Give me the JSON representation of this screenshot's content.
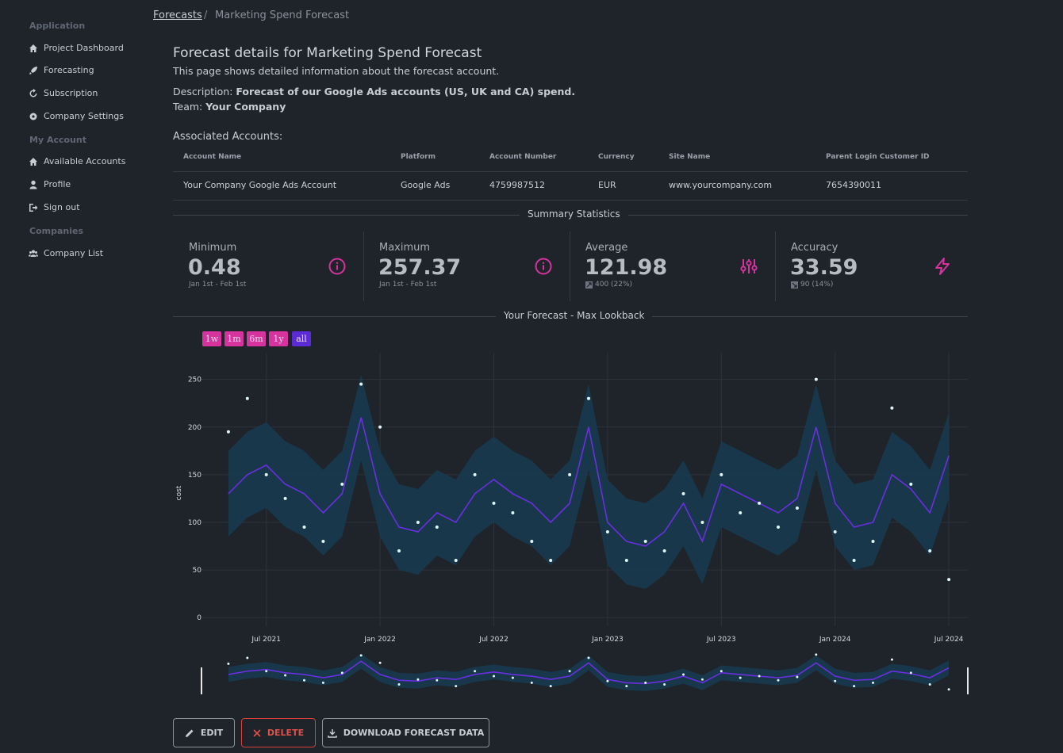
{
  "sidebar": {
    "sections": [
      {
        "title": "Application",
        "items": [
          "Project Dashboard",
          "Forecasting",
          "Subscription",
          "Company Settings"
        ]
      },
      {
        "title": "My Account",
        "items": [
          "Available Accounts",
          "Profile",
          "Sign out"
        ]
      },
      {
        "title": "Companies",
        "items": [
          "Company List"
        ]
      }
    ]
  },
  "breadcrumb": [
    "Forecasts",
    "Marketing Spend Forecast"
  ],
  "header": {
    "title": "Forecast details for Marketing Spend Forecast",
    "subtitle": "This page shows detailed information about the forecast account."
  },
  "description": {
    "label": "Description:",
    "text": "Forecast of our Google Ads accounts (US, UK and CA) spend."
  },
  "team": {
    "label": "Team:",
    "text": "Your Company"
  },
  "accounts": {
    "title": "Associated Accounts:",
    "columns": [
      "Account Name",
      "Platform",
      "Account Number",
      "Currency",
      "Site Name",
      "Parent Login Customer ID"
    ],
    "rows": [
      [
        "Your Company Google Ads Account",
        "Google Ads",
        "4759987512",
        "EUR",
        "www.yourcompany.com",
        "7654390011"
      ]
    ]
  },
  "summary": {
    "title": "Summary Statistics",
    "cards": [
      {
        "label": "Minimum",
        "value": 0.48,
        "note": "Jan 1st - Feb 1st"
      },
      {
        "label": "Maximum",
        "value": 257.37,
        "note": "Jan 1st - Feb 1st"
      },
      {
        "label": "Average",
        "value": 121.98,
        "note": "400 (22%)"
      },
      {
        "label": "Accuracy",
        "value": 33.59,
        "note": "90 (14%)"
      }
    ]
  },
  "chart_title": "Your Forecast - Max Lookback",
  "range_buttons": [
    "1w",
    "1m",
    "6m",
    "1y",
    "all"
  ],
  "chart_data": {
    "type": "line",
    "y_label": "cost",
    "x": [
      "2021-05",
      "2021-06",
      "2021-07",
      "2021-08",
      "2021-09",
      "2021-10",
      "2021-11",
      "2021-12",
      "2022-01",
      "2022-02",
      "2022-03",
      "2022-04",
      "2022-05",
      "2022-06",
      "2022-07",
      "2022-08",
      "2022-09",
      "2022-10",
      "2022-11",
      "2022-12",
      "2023-01",
      "2023-02",
      "2023-03",
      "2023-04",
      "2023-05",
      "2023-06",
      "2023-07",
      "2023-08",
      "2023-09",
      "2023-10",
      "2023-11",
      "2023-12",
      "2024-01",
      "2024-02",
      "2024-03",
      "2024-04",
      "2024-05",
      "2024-06",
      "2024-07"
    ],
    "series": [
      {
        "color": "#6a2fe0",
        "values": [
          130,
          150,
          160,
          140,
          130,
          110,
          130,
          210,
          130,
          95,
          90,
          110,
          100,
          130,
          145,
          130,
          120,
          100,
          120,
          200,
          100,
          80,
          75,
          90,
          120,
          80,
          140,
          130,
          120,
          110,
          125,
          200,
          120,
          95,
          100,
          150,
          135,
          110,
          170
        ]
      }
    ],
    "band": {
      "color": "#173a4f",
      "upper": [
        175,
        195,
        205,
        185,
        175,
        155,
        175,
        255,
        175,
        140,
        135,
        155,
        145,
        175,
        190,
        175,
        165,
        145,
        165,
        245,
        145,
        125,
        120,
        135,
        165,
        125,
        185,
        175,
        165,
        155,
        170,
        245,
        165,
        140,
        145,
        195,
        180,
        155,
        215
      ],
      "lower": [
        85,
        105,
        115,
        95,
        85,
        65,
        85,
        165,
        85,
        50,
        45,
        65,
        55,
        85,
        100,
        85,
        75,
        55,
        75,
        155,
        55,
        35,
        30,
        45,
        75,
        35,
        95,
        85,
        75,
        65,
        80,
        155,
        75,
        50,
        55,
        105,
        90,
        65,
        125
      ]
    },
    "actual": {
      "color": "#dff6f7",
      "values": [
        195,
        230,
        150,
        125,
        95,
        80,
        140,
        245,
        200,
        70,
        100,
        95,
        60,
        150,
        120,
        110,
        80,
        60,
        150,
        230,
        90,
        60,
        80,
        70,
        130,
        100,
        150,
        110,
        120,
        95,
        115,
        250,
        90,
        60,
        80,
        220,
        140,
        70,
        40
      ]
    },
    "xlim": [
      "2021-04",
      "2024-08"
    ],
    "xticks": [
      {
        "value": "2021-07",
        "label": "Jul 2021"
      },
      {
        "value": "2022-01",
        "label": "Jan 2022"
      },
      {
        "value": "2022-07",
        "label": "Jul 2022"
      },
      {
        "value": "2023-01",
        "label": "Jan 2023"
      },
      {
        "value": "2023-07",
        "label": "Jul 2023"
      },
      {
        "value": "2024-01",
        "label": "Jan 2024"
      },
      {
        "value": "2024-07",
        "label": "Jul 2024"
      }
    ],
    "ylim": [
      -9,
      278
    ],
    "yticks": [
      0,
      50,
      100,
      150,
      200,
      250
    ],
    "grid": true
  },
  "actions": [
    "EDIT",
    "DELETE",
    "DOWNLOAD FORECAST DATA"
  ]
}
